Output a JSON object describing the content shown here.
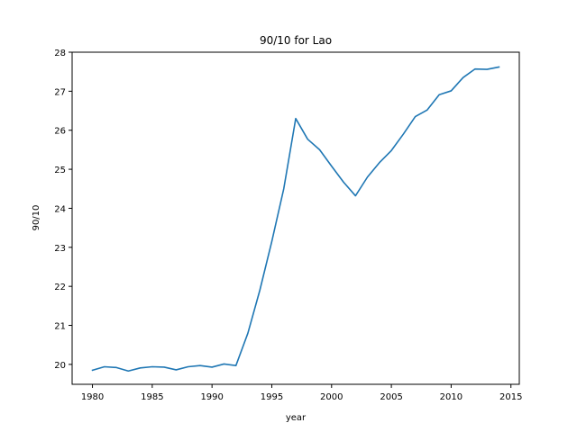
{
  "chart_data": {
    "type": "line",
    "title": "90/10 for Lao",
    "xlabel": "year",
    "ylabel": "90/10",
    "xlim": [
      1978.3,
      2015.7
    ],
    "ylim": [
      19.49,
      28.0
    ],
    "xticks": [
      1980,
      1985,
      1990,
      1995,
      2000,
      2005,
      2010,
      2015
    ],
    "yticks": [
      20,
      21,
      22,
      23,
      24,
      25,
      26,
      27,
      28
    ],
    "grid": false,
    "series": [
      {
        "color": "#1f77b4",
        "x": [
          1980,
          1981,
          1982,
          1983,
          1984,
          1985,
          1986,
          1987,
          1988,
          1989,
          1990,
          1991,
          1992,
          1993,
          1994,
          1995,
          1996,
          1997,
          1998,
          1999,
          2000,
          2001,
          2002,
          2003,
          2004,
          2005,
          2006,
          2007,
          2008,
          2009,
          2010,
          2011,
          2012,
          2013,
          2014
        ],
        "y": [
          19.85,
          19.94,
          19.92,
          19.83,
          19.91,
          19.94,
          19.93,
          19.86,
          19.94,
          19.97,
          19.93,
          20.01,
          19.97,
          20.8,
          21.9,
          23.15,
          24.5,
          26.3,
          25.77,
          25.5,
          25.08,
          24.67,
          24.32,
          24.8,
          25.17,
          25.48,
          25.9,
          26.35,
          26.52,
          26.91,
          27.01,
          27.35,
          27.57,
          27.56,
          27.62
        ]
      }
    ]
  }
}
